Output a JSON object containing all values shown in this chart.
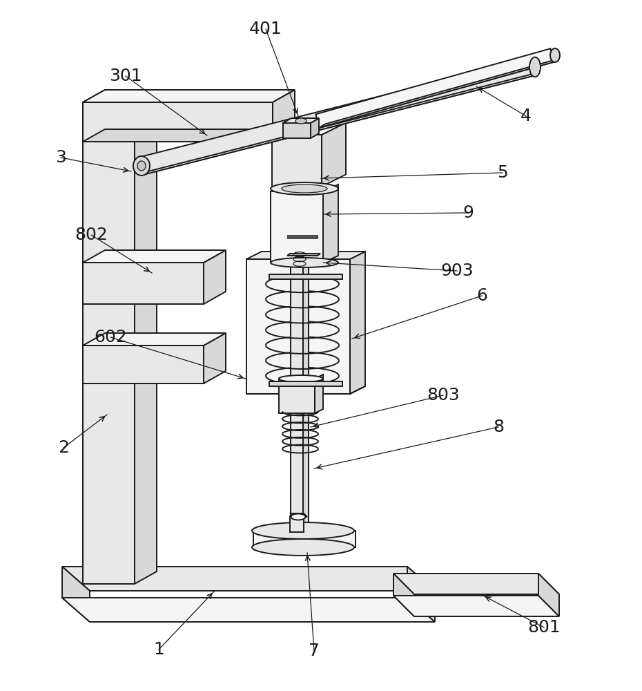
{
  "bg_color": "#ffffff",
  "lc": "#1a1a1a",
  "lw": 1.4,
  "tlw": 0.9,
  "fs": 18,
  "shade1": "#f5f5f5",
  "shade2": "#e8e8e8",
  "shade3": "#d8d8d8",
  "shade4": "#c8c8c8"
}
